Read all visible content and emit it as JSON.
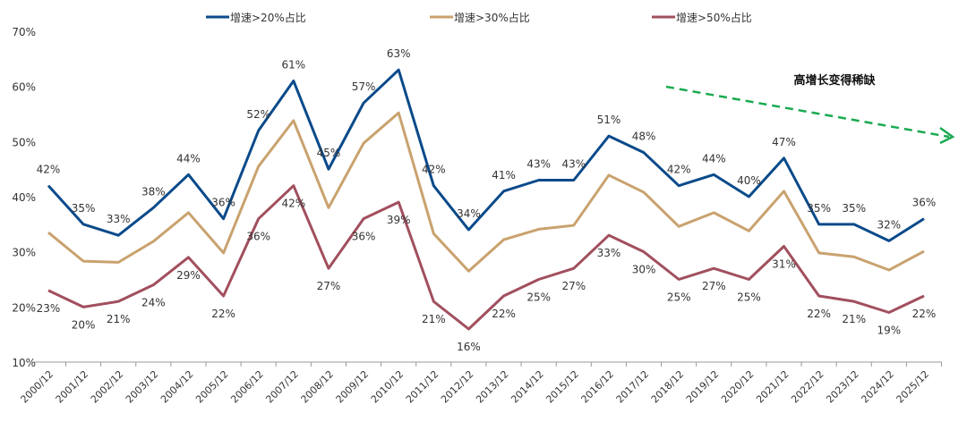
{
  "chart_data": {
    "type": "line",
    "x": [
      "2000/12",
      "2001/12",
      "2002/12",
      "2003/12",
      "2004/12",
      "2005/12",
      "2006/12",
      "2007/12",
      "2008/12",
      "2009/12",
      "2010/12",
      "2011/12",
      "2012/12",
      "2013/12",
      "2014/12",
      "2015/12",
      "2016/12",
      "2017/12",
      "2018/12",
      "2019/12",
      "2020/12",
      "2021/12",
      "2022/12",
      "2023/12",
      "2024/12",
      "2025/12"
    ],
    "ylim": [
      10,
      70
    ],
    "yticks": [
      "10%",
      "20%",
      "30%",
      "40%",
      "50%",
      "60%",
      "70%"
    ],
    "yticks_values": [
      10,
      20,
      30,
      40,
      50,
      60,
      70
    ],
    "grid": false,
    "legend_position": "top",
    "series": [
      {
        "name": "增速>20%占比",
        "color": "#0a4a8a",
        "labeled": true,
        "values": [
          42,
          35,
          33,
          38,
          44,
          36,
          52,
          61,
          45,
          57,
          63,
          42,
          34,
          41,
          43,
          43,
          51,
          48,
          42,
          44,
          40,
          47,
          35,
          35,
          32,
          36
        ]
      },
      {
        "name": "增速>30%占比",
        "color": "#c9a26e",
        "labeled": false,
        "values": [
          33.5,
          28.3,
          28.1,
          31.9,
          37.1,
          29.8,
          45.5,
          53.8,
          38.0,
          49.7,
          55.2,
          33.3,
          26.5,
          32.2,
          34.1,
          34.8,
          43.9,
          40.8,
          34.6,
          37.1,
          33.8,
          41.0,
          29.8,
          29.1,
          26.7,
          30.1
        ]
      },
      {
        "name": "增速>50%占比",
        "color": "#a14f5e",
        "labeled": true,
        "values": [
          23,
          20,
          21,
          24,
          29,
          22,
          36,
          42,
          27,
          36,
          39,
          21,
          16,
          22,
          25,
          27,
          33,
          30,
          25,
          27,
          25,
          31,
          22,
          21,
          19,
          22
        ]
      }
    ],
    "annotation": {
      "text": "高增长变得稀缺",
      "arrow_color": "#1aaa50"
    }
  }
}
